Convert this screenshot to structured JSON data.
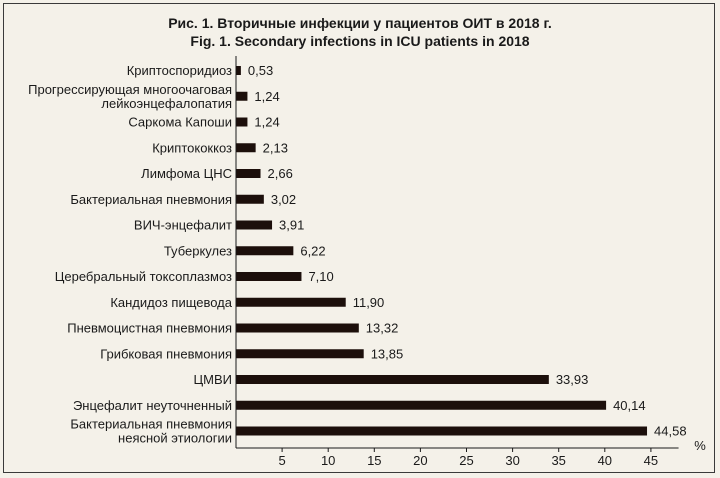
{
  "chart_data": {
    "type": "bar",
    "orientation": "horizontal",
    "title_ru": "Рис. 1. Вторичные инфекции у пациентов ОИТ в 2018 г.",
    "title_en": "Fig. 1. Secondary infections in ICU patients in 2018",
    "xlabel": "%",
    "ylabel": "",
    "xlim": [
      0,
      48
    ],
    "xticks": [
      "5",
      "10",
      "15",
      "20",
      "25",
      "30",
      "35",
      "40",
      "45"
    ],
    "grid": false,
    "bar_color": "#1c0f0b",
    "categories": [
      [
        "Криптоспоридиоз"
      ],
      [
        "Прогрессирующая многоочаговая",
        "лейкоэнцефалопатия"
      ],
      [
        "Саркома Капоши"
      ],
      [
        "Криптококкоз"
      ],
      [
        "Лимфома ЦНС"
      ],
      [
        "Бактериальная пневмония"
      ],
      [
        "ВИЧ-энцефалит"
      ],
      [
        "Туберкулез"
      ],
      [
        "Церебральный токсоплазмоз"
      ],
      [
        "Кандидоз пищевода"
      ],
      [
        "Пневмоцистная пневмония"
      ],
      [
        "Грибковая пневмония"
      ],
      [
        "ЦМВИ"
      ],
      [
        "Энцефалит неуточненный"
      ],
      [
        "Бактериальная пневмония",
        "неясной этиологии"
      ]
    ],
    "values": [
      0.53,
      1.24,
      1.24,
      2.13,
      2.66,
      3.02,
      3.91,
      6.22,
      7.1,
      11.9,
      13.32,
      13.85,
      33.93,
      40.14,
      44.58
    ],
    "value_labels": [
      "0,53",
      "1,24",
      "1,24",
      "2,13",
      "2,66",
      "3,02",
      "3,91",
      "6,22",
      "7,10",
      "11,90",
      "13,32",
      "13,85",
      "33,93",
      "40,14",
      "44,58"
    ]
  }
}
